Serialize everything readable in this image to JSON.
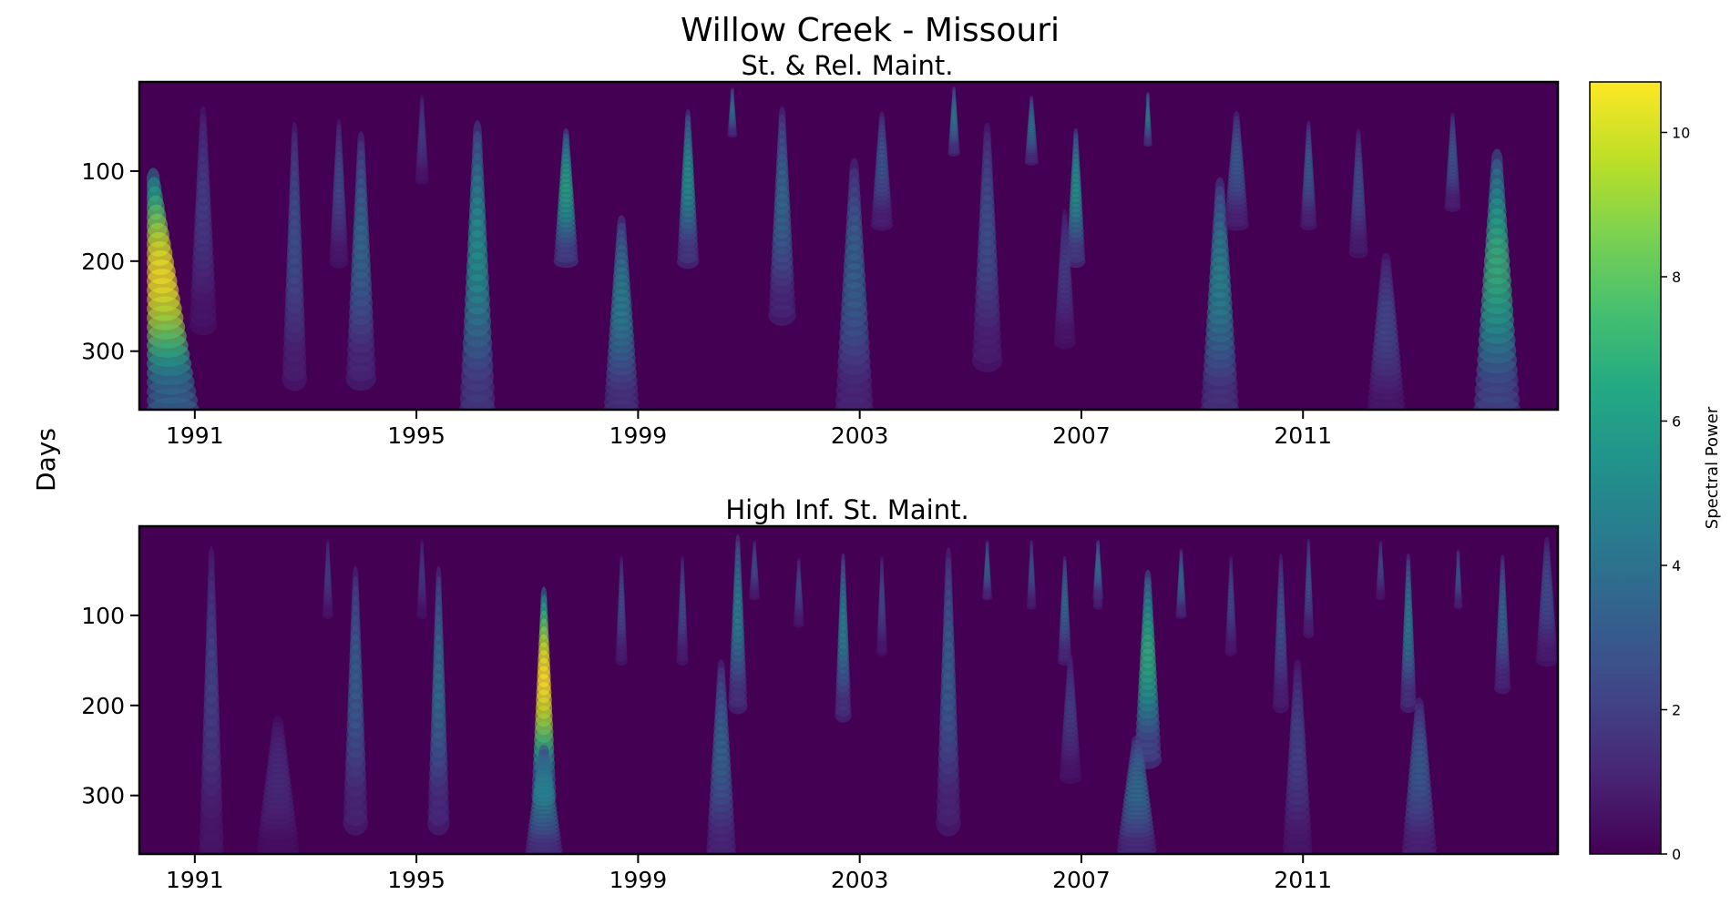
{
  "figure": {
    "suptitle": "Willow Creek - Missouri",
    "ylabel": "Days"
  },
  "colors": {
    "background": "#440154",
    "colormap": "viridis",
    "axes_frame": "#000000"
  },
  "chart_data": [
    {
      "type": "heatmap",
      "title": "St. & Rel. Maint.",
      "xlabel": "",
      "ylabel": "Days",
      "xlim": [
        1990.0,
        2015.6
      ],
      "ylim": [
        365,
        1
      ],
      "xticks": [
        "1991",
        "1995",
        "1999",
        "2003",
        "2007",
        "2011"
      ],
      "yticks": [
        100,
        200,
        300
      ],
      "vmin": 0,
      "vmax": 10.7,
      "blobs": [
        {
          "x": 1990.25,
          "peak": 10.5,
          "yTop": 110,
          "yBottom": 365,
          "w": 0.95,
          "slope": 0.0014
        },
        {
          "x": 1991.15,
          "peak": 2.0,
          "yTop": 40,
          "yBottom": 270,
          "w": 0.5,
          "slope": 0.0
        },
        {
          "x": 1992.8,
          "peak": 2.8,
          "yTop": 60,
          "yBottom": 330,
          "w": 0.45,
          "slope": 0.0
        },
        {
          "x": 1993.6,
          "peak": 2.4,
          "yTop": 50,
          "yBottom": 200,
          "w": 0.35,
          "slope": 0.0
        },
        {
          "x": 1994.0,
          "peak": 3.8,
          "yTop": 70,
          "yBottom": 330,
          "w": 0.55,
          "slope": 0.0
        },
        {
          "x": 1995.1,
          "peak": 2.0,
          "yTop": 20,
          "yBottom": 110,
          "w": 0.25,
          "slope": 0.0
        },
        {
          "x": 1996.1,
          "peak": 5.6,
          "yTop": 60,
          "yBottom": 365,
          "w": 0.65,
          "slope": 0.0
        },
        {
          "x": 1997.7,
          "peak": 6.3,
          "yTop": 60,
          "yBottom": 200,
          "w": 0.45,
          "slope": 0.0
        },
        {
          "x": 1998.7,
          "peak": 4.8,
          "yTop": 160,
          "yBottom": 365,
          "w": 0.65,
          "slope": 0.0
        },
        {
          "x": 1999.9,
          "peak": 5.5,
          "yTop": 40,
          "yBottom": 200,
          "w": 0.4,
          "slope": 0.0
        },
        {
          "x": 2000.7,
          "peak": 4.2,
          "yTop": 10,
          "yBottom": 60,
          "w": 0.18,
          "slope": 0.0
        },
        {
          "x": 2001.6,
          "peak": 3.8,
          "yTop": 40,
          "yBottom": 260,
          "w": 0.5,
          "slope": 0.0
        },
        {
          "x": 2002.9,
          "peak": 3.6,
          "yTop": 100,
          "yBottom": 365,
          "w": 0.7,
          "slope": 0.0
        },
        {
          "x": 2003.4,
          "peak": 3.0,
          "yTop": 40,
          "yBottom": 160,
          "w": 0.4,
          "slope": 0.0
        },
        {
          "x": 2004.7,
          "peak": 4.6,
          "yTop": 10,
          "yBottom": 80,
          "w": 0.22,
          "slope": 0.0
        },
        {
          "x": 2005.3,
          "peak": 2.8,
          "yTop": 60,
          "yBottom": 310,
          "w": 0.55,
          "slope": 0.0
        },
        {
          "x": 2006.1,
          "peak": 4.2,
          "yTop": 20,
          "yBottom": 90,
          "w": 0.25,
          "slope": 0.0
        },
        {
          "x": 2006.9,
          "peak": 5.6,
          "yTop": 60,
          "yBottom": 200,
          "w": 0.35,
          "slope": 0.0
        },
        {
          "x": 2006.7,
          "peak": 2.0,
          "yTop": 150,
          "yBottom": 290,
          "w": 0.4,
          "slope": 0.0
        },
        {
          "x": 2008.2,
          "peak": 4.8,
          "yTop": 15,
          "yBottom": 70,
          "w": 0.16,
          "slope": 0.0
        },
        {
          "x": 2009.5,
          "peak": 5.0,
          "yTop": 120,
          "yBottom": 365,
          "w": 0.7,
          "slope": 0.0
        },
        {
          "x": 2009.8,
          "peak": 3.2,
          "yTop": 40,
          "yBottom": 160,
          "w": 0.45,
          "slope": 0.0
        },
        {
          "x": 2011.1,
          "peak": 3.2,
          "yTop": 50,
          "yBottom": 160,
          "w": 0.3,
          "slope": 0.0
        },
        {
          "x": 2012.0,
          "peak": 2.6,
          "yTop": 60,
          "yBottom": 190,
          "w": 0.35,
          "slope": 0.0
        },
        {
          "x": 2012.5,
          "peak": 2.4,
          "yTop": 200,
          "yBottom": 365,
          "w": 0.7,
          "slope": 0.0
        },
        {
          "x": 2013.7,
          "peak": 3.0,
          "yTop": 40,
          "yBottom": 140,
          "w": 0.3,
          "slope": 0.0
        },
        {
          "x": 2014.5,
          "peak": 7.0,
          "yTop": 90,
          "yBottom": 365,
          "w": 0.85,
          "slope": 0.0
        }
      ]
    },
    {
      "type": "heatmap",
      "title": "High Inf. St. Maint.",
      "xlabel": "",
      "ylabel": "Days",
      "xlim": [
        1990.0,
        2015.6
      ],
      "ylim": [
        365,
        1
      ],
      "xticks": [
        "1991",
        "1995",
        "1999",
        "2003",
        "2007",
        "2011"
      ],
      "yticks": [
        100,
        200,
        300
      ],
      "vmin": 0,
      "vmax": 10.7,
      "blobs": [
        {
          "x": 1991.3,
          "peak": 2.2,
          "yTop": 40,
          "yBottom": 360,
          "w": 0.45,
          "slope": 0.0
        },
        {
          "x": 1992.5,
          "peak": 1.4,
          "yTop": 220,
          "yBottom": 365,
          "w": 0.8,
          "slope": 0.0
        },
        {
          "x": 1993.4,
          "peak": 2.0,
          "yTop": 20,
          "yBottom": 100,
          "w": 0.2,
          "slope": 0.0
        },
        {
          "x": 1993.9,
          "peak": 3.4,
          "yTop": 60,
          "yBottom": 330,
          "w": 0.45,
          "slope": 0.0
        },
        {
          "x": 1995.1,
          "peak": 1.8,
          "yTop": 20,
          "yBottom": 100,
          "w": 0.2,
          "slope": 0.0
        },
        {
          "x": 1995.4,
          "peak": 4.0,
          "yTop": 60,
          "yBottom": 330,
          "w": 0.4,
          "slope": 0.0
        },
        {
          "x": 1997.3,
          "peak": 10.7,
          "yTop": 80,
          "yBottom": 300,
          "w": 0.45,
          "slope": 0.0
        },
        {
          "x": 1997.3,
          "peak": 4.8,
          "yTop": 250,
          "yBottom": 365,
          "w": 0.7,
          "slope": 0.0
        },
        {
          "x": 1998.7,
          "peak": 2.6,
          "yTop": 40,
          "yBottom": 150,
          "w": 0.22,
          "slope": 0.0
        },
        {
          "x": 1999.8,
          "peak": 2.6,
          "yTop": 40,
          "yBottom": 150,
          "w": 0.22,
          "slope": 0.0
        },
        {
          "x": 2000.5,
          "peak": 3.6,
          "yTop": 160,
          "yBottom": 365,
          "w": 0.55,
          "slope": 0.0
        },
        {
          "x": 2000.8,
          "peak": 4.8,
          "yTop": 20,
          "yBottom": 200,
          "w": 0.35,
          "slope": 0.0
        },
        {
          "x": 2001.1,
          "peak": 2.6,
          "yTop": 20,
          "yBottom": 80,
          "w": 0.2,
          "slope": 0.0
        },
        {
          "x": 2001.9,
          "peak": 2.4,
          "yTop": 40,
          "yBottom": 110,
          "w": 0.2,
          "slope": 0.0
        },
        {
          "x": 2002.7,
          "peak": 4.8,
          "yTop": 40,
          "yBottom": 210,
          "w": 0.3,
          "slope": 0.0
        },
        {
          "x": 2003.4,
          "peak": 2.4,
          "yTop": 40,
          "yBottom": 140,
          "w": 0.2,
          "slope": 0.0
        },
        {
          "x": 2004.6,
          "peak": 3.4,
          "yTop": 40,
          "yBottom": 330,
          "w": 0.45,
          "slope": 0.0
        },
        {
          "x": 2005.3,
          "peak": 3.6,
          "yTop": 20,
          "yBottom": 80,
          "w": 0.18,
          "slope": 0.0
        },
        {
          "x": 2006.1,
          "peak": 2.8,
          "yTop": 20,
          "yBottom": 90,
          "w": 0.18,
          "slope": 0.0
        },
        {
          "x": 2006.7,
          "peak": 3.8,
          "yTop": 40,
          "yBottom": 150,
          "w": 0.25,
          "slope": 0.0
        },
        {
          "x": 2007.3,
          "peak": 3.0,
          "yTop": 20,
          "yBottom": 90,
          "w": 0.18,
          "slope": 0.0
        },
        {
          "x": 2006.8,
          "peak": 2.0,
          "yTop": 150,
          "yBottom": 280,
          "w": 0.4,
          "slope": 0.0
        },
        {
          "x": 2007.3,
          "peak": 3.6,
          "yTop": 20,
          "yBottom": 80,
          "w": 0.2,
          "slope": 0.0
        },
        {
          "x": 2008.2,
          "peak": 6.8,
          "yTop": 60,
          "yBottom": 260,
          "w": 0.5,
          "slope": 0.0
        },
        {
          "x": 2008.0,
          "peak": 4.0,
          "yTop": 240,
          "yBottom": 365,
          "w": 0.75,
          "slope": 0.0
        },
        {
          "x": 2008.8,
          "peak": 3.8,
          "yTop": 30,
          "yBottom": 100,
          "w": 0.2,
          "slope": 0.0
        },
        {
          "x": 2009.7,
          "peak": 2.4,
          "yTop": 40,
          "yBottom": 140,
          "w": 0.22,
          "slope": 0.0
        },
        {
          "x": 2010.6,
          "peak": 2.8,
          "yTop": 40,
          "yBottom": 200,
          "w": 0.3,
          "slope": 0.0
        },
        {
          "x": 2010.9,
          "peak": 2.2,
          "yTop": 160,
          "yBottom": 365,
          "w": 0.55,
          "slope": 0.0
        },
        {
          "x": 2011.1,
          "peak": 2.8,
          "yTop": 20,
          "yBottom": 120,
          "w": 0.2,
          "slope": 0.0
        },
        {
          "x": 2012.4,
          "peak": 2.4,
          "yTop": 20,
          "yBottom": 80,
          "w": 0.18,
          "slope": 0.0
        },
        {
          "x": 2012.9,
          "peak": 4.6,
          "yTop": 40,
          "yBottom": 200,
          "w": 0.3,
          "slope": 0.0
        },
        {
          "x": 2013.1,
          "peak": 3.2,
          "yTop": 200,
          "yBottom": 365,
          "w": 0.65,
          "slope": 0.0
        },
        {
          "x": 2013.8,
          "peak": 3.0,
          "yTop": 30,
          "yBottom": 90,
          "w": 0.16,
          "slope": 0.0
        },
        {
          "x": 2014.6,
          "peak": 3.6,
          "yTop": 40,
          "yBottom": 180,
          "w": 0.3,
          "slope": 0.0
        },
        {
          "x": 2015.4,
          "peak": 2.6,
          "yTop": 20,
          "yBottom": 150,
          "w": 0.4,
          "slope": 0.0
        }
      ]
    }
  ],
  "colorbar": {
    "label": "Spectral Power",
    "ticks": [
      0,
      2,
      4,
      6,
      8,
      10
    ],
    "vmin": 0,
    "vmax": 10.7
  }
}
